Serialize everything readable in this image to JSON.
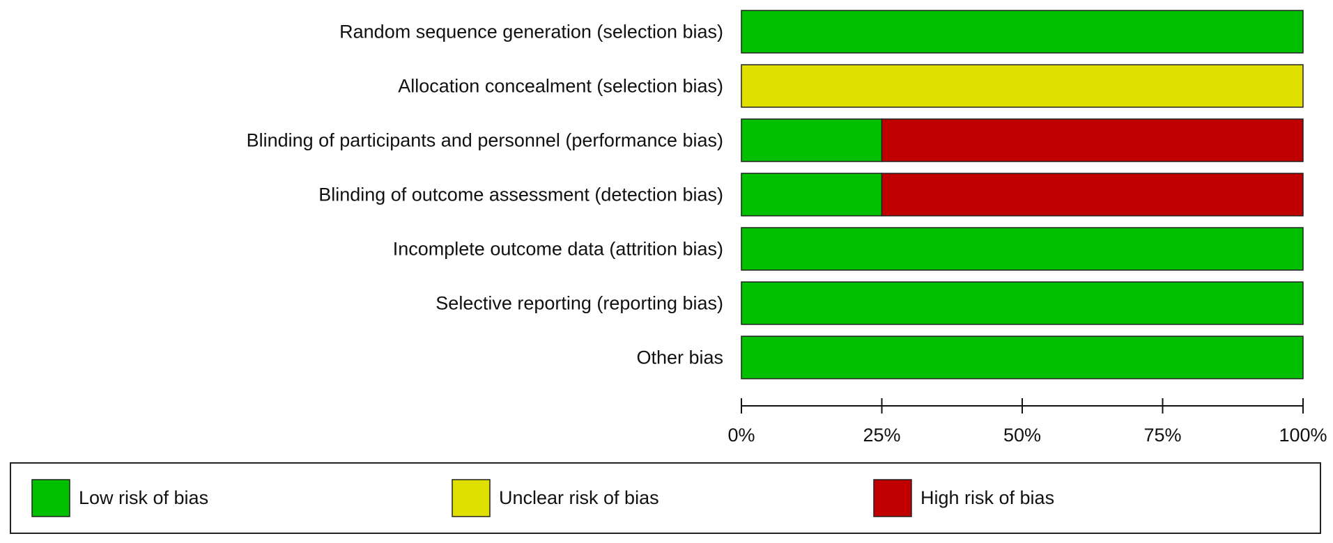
{
  "chart_data": {
    "type": "stacked-barh",
    "categories": [
      "Random sequence generation (selection bias)",
      "Allocation concealment (selection bias)",
      "Blinding of participants and personnel (performance bias)",
      "Blinding of outcome assessment (detection bias)",
      "Incomplete outcome data (attrition bias)",
      "Selective reporting (reporting bias)",
      "Other bias"
    ],
    "series": [
      {
        "name": "Low risk of bias",
        "color": "#00c000",
        "values": [
          100,
          0,
          25,
          25,
          100,
          100,
          100
        ]
      },
      {
        "name": "Unclear risk of bias",
        "color": "#e0e000",
        "values": [
          0,
          100,
          0,
          0,
          0,
          0,
          0
        ]
      },
      {
        "name": "High risk of bias",
        "color": "#c00000",
        "values": [
          0,
          0,
          75,
          75,
          0,
          0,
          0
        ]
      }
    ],
    "xlim": [
      0,
      100
    ],
    "xticks": [
      {
        "value": 0,
        "label": "0%"
      },
      {
        "value": 25,
        "label": "25%"
      },
      {
        "value": 50,
        "label": "50%"
      },
      {
        "value": 75,
        "label": "75%"
      },
      {
        "value": 100,
        "label": "100%"
      }
    ],
    "legend": "bottom"
  }
}
